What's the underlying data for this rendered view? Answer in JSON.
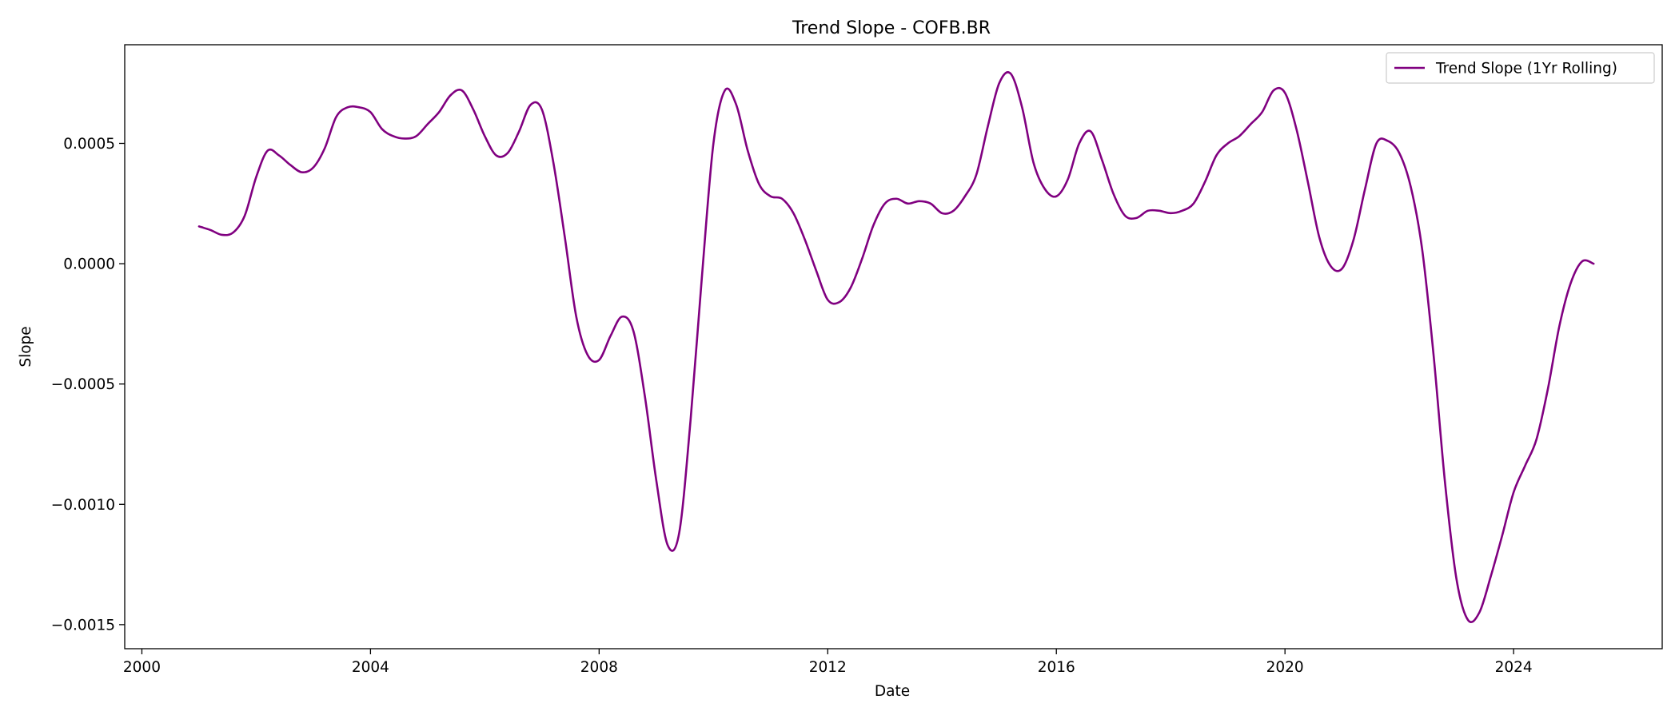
{
  "chart_data": {
    "type": "line",
    "title": "Trend Slope - COFB.BR",
    "xlabel": "Date",
    "ylabel": "Slope",
    "x_axis": "date",
    "xlim": [
      1999.7,
      2026.6
    ],
    "ylim": [
      -0.0016,
      0.00091
    ],
    "x_ticks": [
      2000,
      2004,
      2008,
      2012,
      2016,
      2020,
      2024
    ],
    "x_tick_labels": [
      "2000",
      "2004",
      "2008",
      "2012",
      "2016",
      "2020",
      "2024"
    ],
    "y_ticks": [
      -0.0015,
      -0.001,
      -0.0005,
      0.0,
      0.0005
    ],
    "y_tick_labels": [
      "−0.0015",
      "−0.0010",
      "−0.0005",
      "0.0000",
      "0.0005"
    ],
    "grid": false,
    "legend": {
      "placement": "top-right",
      "entries": [
        "Trend Slope (1Yr Rolling)"
      ]
    },
    "series": [
      {
        "name": "Trend Slope (1Yr Rolling)",
        "color": "#800080",
        "x": [
          2001.0,
          2001.2,
          2001.4,
          2001.6,
          2001.8,
          2002.0,
          2002.2,
          2002.4,
          2002.6,
          2002.8,
          2003.0,
          2003.2,
          2003.4,
          2003.6,
          2003.8,
          2004.0,
          2004.2,
          2004.4,
          2004.6,
          2004.8,
          2005.0,
          2005.2,
          2005.4,
          2005.6,
          2005.8,
          2006.0,
          2006.2,
          2006.4,
          2006.6,
          2006.8,
          2007.0,
          2007.2,
          2007.4,
          2007.6,
          2007.8,
          2008.0,
          2008.2,
          2008.4,
          2008.6,
          2008.8,
          2009.0,
          2009.2,
          2009.4,
          2009.6,
          2009.8,
          2010.0,
          2010.2,
          2010.4,
          2010.6,
          2010.8,
          2011.0,
          2011.2,
          2011.4,
          2011.6,
          2011.8,
          2012.0,
          2012.2,
          2012.4,
          2012.6,
          2012.8,
          2013.0,
          2013.2,
          2013.4,
          2013.6,
          2013.8,
          2014.0,
          2014.2,
          2014.4,
          2014.6,
          2014.8,
          2015.0,
          2015.2,
          2015.4,
          2015.6,
          2015.8,
          2016.0,
          2016.2,
          2016.4,
          2016.6,
          2016.8,
          2017.0,
          2017.2,
          2017.4,
          2017.6,
          2017.8,
          2018.0,
          2018.2,
          2018.4,
          2018.6,
          2018.8,
          2019.0,
          2019.2,
          2019.4,
          2019.6,
          2019.8,
          2020.0,
          2020.2,
          2020.4,
          2020.6,
          2020.8,
          2021.0,
          2021.2,
          2021.4,
          2021.6,
          2021.8,
          2022.0,
          2022.2,
          2022.4,
          2022.6,
          2022.8,
          2023.0,
          2023.2,
          2023.4,
          2023.6,
          2023.8,
          2024.0,
          2024.2,
          2024.4,
          2024.6,
          2024.8,
          2025.0,
          2025.2,
          2025.4
        ],
        "y": [
          0.000155,
          0.00014,
          0.00012,
          0.00013,
          0.0002,
          0.00036,
          0.00047,
          0.00045,
          0.00041,
          0.00038,
          0.0004,
          0.00048,
          0.00061,
          0.00065,
          0.00065,
          0.00063,
          0.00056,
          0.00053,
          0.00052,
          0.00053,
          0.00058,
          0.00063,
          0.0007,
          0.00072,
          0.00064,
          0.00053,
          0.00045,
          0.00046,
          0.00055,
          0.00066,
          0.00064,
          0.00042,
          0.00011,
          -0.00022,
          -0.00038,
          -0.0004,
          -0.0003,
          -0.00022,
          -0.00028,
          -0.00055,
          -0.0009,
          -0.00117,
          -0.00112,
          -0.00065,
          -5e-05,
          0.0005,
          0.00072,
          0.00066,
          0.00047,
          0.00033,
          0.00028,
          0.00027,
          0.00021,
          0.0001,
          -3e-05,
          -0.00015,
          -0.00016,
          -0.0001,
          2e-05,
          0.00016,
          0.00025,
          0.00027,
          0.00025,
          0.00026,
          0.00025,
          0.00021,
          0.00022,
          0.00028,
          0.00037,
          0.00057,
          0.00075,
          0.00079,
          0.00065,
          0.00042,
          0.00031,
          0.00028,
          0.00035,
          0.0005,
          0.00055,
          0.00043,
          0.00029,
          0.0002,
          0.00019,
          0.00022,
          0.00022,
          0.00021,
          0.00022,
          0.00025,
          0.00034,
          0.00045,
          0.0005,
          0.00053,
          0.00058,
          0.00063,
          0.00072,
          0.00071,
          0.00056,
          0.00034,
          0.00011,
          -1e-05,
          -2e-05,
          0.0001,
          0.00031,
          0.0005,
          0.00051,
          0.00046,
          0.00032,
          6e-05,
          -0.00038,
          -0.00091,
          -0.00131,
          -0.00148,
          -0.00145,
          -0.0013,
          -0.00113,
          -0.00095,
          -0.00084,
          -0.00073,
          -0.00052,
          -0.00026,
          -8e-05,
          1e-05,
          0.0
        ]
      }
    ]
  }
}
